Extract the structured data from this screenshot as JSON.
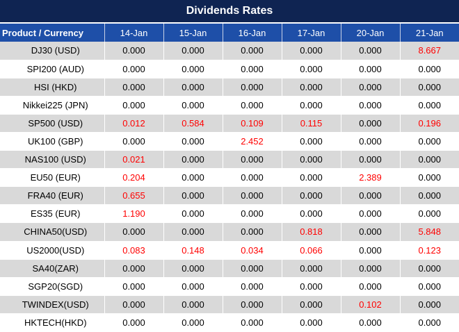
{
  "title": "Dividends Rates",
  "headers": [
    "Product / Currency",
    "14-Jan",
    "15-Jan",
    "16-Jan",
    "17-Jan",
    "20-Jan",
    "21-Jan"
  ],
  "colors": {
    "header_bg": "#1e4fa8",
    "title_bg": "#0f2452",
    "stripe": "#d9d9d9",
    "highlight": "#ff0000"
  },
  "rows": [
    {
      "product": "DJ30 (USD)",
      "values": [
        "0.000",
        "0.000",
        "0.000",
        "0.000",
        "0.000",
        "8.667"
      ]
    },
    {
      "product": "SPI200 (AUD)",
      "values": [
        "0.000",
        "0.000",
        "0.000",
        "0.000",
        "0.000",
        "0.000"
      ]
    },
    {
      "product": "HSI (HKD)",
      "values": [
        "0.000",
        "0.000",
        "0.000",
        "0.000",
        "0.000",
        "0.000"
      ]
    },
    {
      "product": "Nikkei225 (JPN)",
      "values": [
        "0.000",
        "0.000",
        "0.000",
        "0.000",
        "0.000",
        "0.000"
      ]
    },
    {
      "product": "SP500 (USD)",
      "values": [
        "0.012",
        "0.584",
        "0.109",
        "0.115",
        "0.000",
        "0.196"
      ]
    },
    {
      "product": "UK100 (GBP)",
      "values": [
        "0.000",
        "0.000",
        "2.452",
        "0.000",
        "0.000",
        "0.000"
      ]
    },
    {
      "product": "NAS100 (USD)",
      "values": [
        "0.021",
        "0.000",
        "0.000",
        "0.000",
        "0.000",
        "0.000"
      ]
    },
    {
      "product": "EU50 (EUR)",
      "values": [
        "0.204",
        "0.000",
        "0.000",
        "0.000",
        "2.389",
        "0.000"
      ]
    },
    {
      "product": "FRA40 (EUR)",
      "values": [
        "0.655",
        "0.000",
        "0.000",
        "0.000",
        "0.000",
        "0.000"
      ]
    },
    {
      "product": "ES35 (EUR)",
      "values": [
        "1.190",
        "0.000",
        "0.000",
        "0.000",
        "0.000",
        "0.000"
      ]
    },
    {
      "product": "CHINA50(USD)",
      "values": [
        "0.000",
        "0.000",
        "0.000",
        "0.818",
        "0.000",
        "5.848"
      ]
    },
    {
      "product": "US2000(USD)",
      "values": [
        "0.083",
        "0.148",
        "0.034",
        "0.066",
        "0.000",
        "0.123"
      ]
    },
    {
      "product": "SA40(ZAR)",
      "values": [
        "0.000",
        "0.000",
        "0.000",
        "0.000",
        "0.000",
        "0.000"
      ]
    },
    {
      "product": "SGP20(SGD)",
      "values": [
        "0.000",
        "0.000",
        "0.000",
        "0.000",
        "0.000",
        "0.000"
      ]
    },
    {
      "product": "TWINDEX(USD)",
      "values": [
        "0.000",
        "0.000",
        "0.000",
        "0.000",
        "0.102",
        "0.000"
      ]
    },
    {
      "product": "HKTECH(HKD)",
      "values": [
        "0.000",
        "0.000",
        "0.000",
        "0.000",
        "0.000",
        "0.000"
      ]
    }
  ]
}
